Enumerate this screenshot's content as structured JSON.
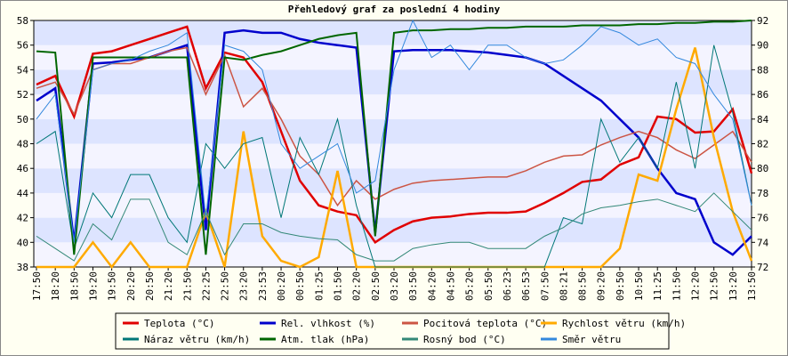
{
  "chart_data": {
    "type": "line",
    "title": "Přehledový graf za poslední 4 hodiny",
    "categories": [
      "17:50",
      "18:20",
      "18:50",
      "19:20",
      "19:50",
      "20:20",
      "20:50",
      "21:20",
      "21:50",
      "22:25",
      "22:50",
      "23:20",
      "23:53",
      "00:20",
      "00:50",
      "01:25",
      "01:50",
      "02:20",
      "02:50",
      "03:20",
      "03:50",
      "04:20",
      "04:50",
      "05:20",
      "05:50",
      "06:23",
      "06:53",
      "07:50",
      "08:21",
      "08:50",
      "09:20",
      "09:50",
      "10:50",
      "11:25",
      "11:50",
      "12:20",
      "12:50",
      "13:20",
      "13:50"
    ],
    "ylim": [
      38,
      58
    ],
    "yticks": [
      38,
      40,
      42,
      44,
      46,
      48,
      50,
      52,
      54,
      56,
      58
    ],
    "y2lim": [
      72,
      92
    ],
    "y2ticks": [
      72,
      74,
      76,
      78,
      80,
      82,
      84,
      86,
      88,
      90,
      92
    ],
    "series": [
      {
        "name": "Teplota (°C)",
        "color": "#e00000",
        "values": [
          52.8,
          53.5,
          50.2,
          55.3,
          55.5,
          56,
          56.5,
          57,
          57.5,
          52.5,
          55.4,
          55,
          53,
          49,
          45,
          43,
          42.5,
          42.2,
          40,
          41,
          41.7,
          42,
          42.1,
          42.3,
          42.4,
          42.4,
          42.5,
          43.2,
          44,
          44.9,
          45.1,
          46.3,
          46.9,
          50.2,
          50,
          48.9,
          49,
          50.8,
          45.6
        ]
      },
      {
        "name": "Rel. vlhkost (%)",
        "color": "#0000cc",
        "axis": "y2",
        "values": [
          85.5,
          86.5,
          74,
          88.5,
          88.6,
          88.8,
          89,
          89.5,
          90,
          75,
          91,
          91.2,
          91,
          91,
          90.5,
          90.2,
          90,
          89.8,
          74.8,
          89.5,
          89.6,
          89.6,
          89.6,
          89.5,
          89.4,
          89.2,
          89,
          88.5,
          87.5,
          86.5,
          85.5,
          84,
          82.5,
          80,
          78,
          77.5,
          74,
          73,
          74.5
        ]
      },
      {
        "name": "Pocitová teplota (°C)",
        "color": "#cc5544",
        "values": [
          52.5,
          53,
          50.4,
          54,
          54.5,
          54.5,
          55,
          55.5,
          55.8,
          52,
          55.2,
          51,
          52.5,
          50,
          47,
          45.5,
          43,
          45,
          43.5,
          44.3,
          44.8,
          45,
          45.1,
          45.2,
          45.3,
          45.3,
          45.8,
          46.5,
          47,
          47.1,
          47.9,
          48.5,
          49,
          48.5,
          47.5,
          46.8,
          47.9,
          49,
          46.5
        ]
      },
      {
        "name": "Rychlost větru (km/h)",
        "color": "#ffaa00",
        "axis": "y2",
        "values": [
          72,
          72,
          72,
          74,
          72,
          74,
          72,
          72,
          72,
          76.5,
          72,
          83,
          74.5,
          72.5,
          72,
          72.8,
          79.8,
          72,
          72,
          72,
          72,
          72,
          72,
          72,
          72,
          72,
          72,
          72,
          72,
          72,
          72,
          73.5,
          79.5,
          79,
          84.8,
          89.8,
          82.5,
          76.5,
          72.5
        ]
      },
      {
        "name": "Náraz větru (km/h)",
        "color": "#007777",
        "axis": "y2",
        "values": [
          82,
          83,
          73.5,
          78,
          76,
          79.5,
          79.5,
          76,
          74,
          82,
          80,
          82,
          82.5,
          76,
          82.5,
          79.5,
          84,
          77,
          72,
          72,
          72,
          72,
          72,
          72,
          72,
          72,
          72,
          72,
          76,
          75.5,
          84,
          80.5,
          82.5,
          80,
          87,
          80,
          90,
          84.5,
          77
        ]
      },
      {
        "name": "Atm. tlak (hPa)",
        "color": "#006600",
        "axis": "y2",
        "values": [
          89.5,
          89.4,
          73,
          89,
          89,
          89,
          89,
          89,
          89,
          73,
          89,
          88.8,
          89.2,
          89.5,
          90,
          90.5,
          90.8,
          91,
          74.5,
          91,
          91.2,
          91.2,
          91.3,
          91.3,
          91.4,
          91.4,
          91.5,
          91.5,
          91.5,
          91.6,
          91.6,
          91.6,
          91.7,
          91.7,
          91.8,
          91.8,
          91.9,
          91.9,
          92
        ]
      },
      {
        "name": "Rosný bod (°C)",
        "color": "#338877",
        "values": [
          40.5,
          39.5,
          38.5,
          41.5,
          40.2,
          43.5,
          43.5,
          40,
          39,
          42.5,
          39,
          41.5,
          41.5,
          40.8,
          40.5,
          40.3,
          40.2,
          39,
          38.5,
          38.5,
          39.5,
          39.8,
          40,
          40,
          39.5,
          39.5,
          39.5,
          40.5,
          41.2,
          42.3,
          42.8,
          43,
          43.3,
          43.5,
          43,
          42.5,
          44,
          42.5,
          41
        ]
      },
      {
        "name": "Směr větru",
        "color": "#3388dd",
        "axis": "y2",
        "values": [
          84,
          86,
          74,
          88,
          88.5,
          88.8,
          89.5,
          90,
          91,
          76,
          90,
          89.5,
          88,
          82,
          80,
          81,
          82,
          78,
          79,
          88,
          92,
          89,
          90,
          88,
          90,
          90,
          89,
          88.5,
          88.8,
          90,
          91.5,
          91,
          90,
          90.5,
          89,
          88.5,
          86,
          84,
          77
        ]
      }
    ]
  }
}
